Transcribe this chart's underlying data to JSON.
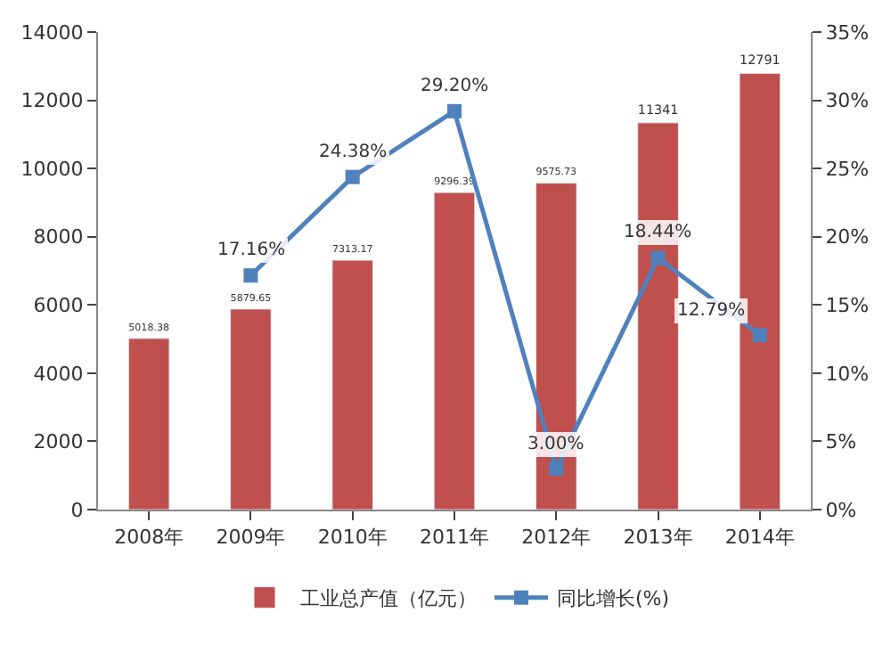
{
  "chart_data": {
    "type": "bar",
    "categories": [
      "2008年",
      "2009年",
      "2010年",
      "2011年",
      "2012年",
      "2013年",
      "2014年"
    ],
    "series": [
      {
        "name": "工业总产值（亿元）",
        "color": "#c0504d",
        "values": [
          5018.38,
          5879.65,
          7313.17,
          9296.39,
          9575.73,
          11341,
          12791
        ],
        "data_labels": true
      },
      {
        "name": "同比增长(%)",
        "type": "line",
        "axis": "y2",
        "color": "#4f81bd",
        "marker": "square",
        "values": [
          null,
          17.16,
          24.38,
          29.2,
          3.0,
          18.44,
          12.79
        ],
        "value_labels": [
          null,
          "17.16%",
          "24.38%",
          "29.20%",
          "3.00%",
          "18.44%",
          "12.79%"
        ]
      }
    ],
    "ylim": [
      0,
      14000
    ],
    "yticks": [
      0,
      2000,
      4000,
      6000,
      8000,
      10000,
      12000,
      14000
    ],
    "y2lim": [
      0,
      35
    ],
    "y2ticks": [
      {
        "value": 0,
        "label": "0%"
      },
      {
        "value": 5,
        "label": "5%"
      },
      {
        "value": 10,
        "label": "10%"
      },
      {
        "value": 15,
        "label": "15%"
      },
      {
        "value": 20,
        "label": "20%"
      },
      {
        "value": 25,
        "label": "25%"
      },
      {
        "value": 30,
        "label": "30%"
      },
      {
        "value": 35,
        "label": "35%"
      }
    ],
    "legend": "bottom"
  }
}
